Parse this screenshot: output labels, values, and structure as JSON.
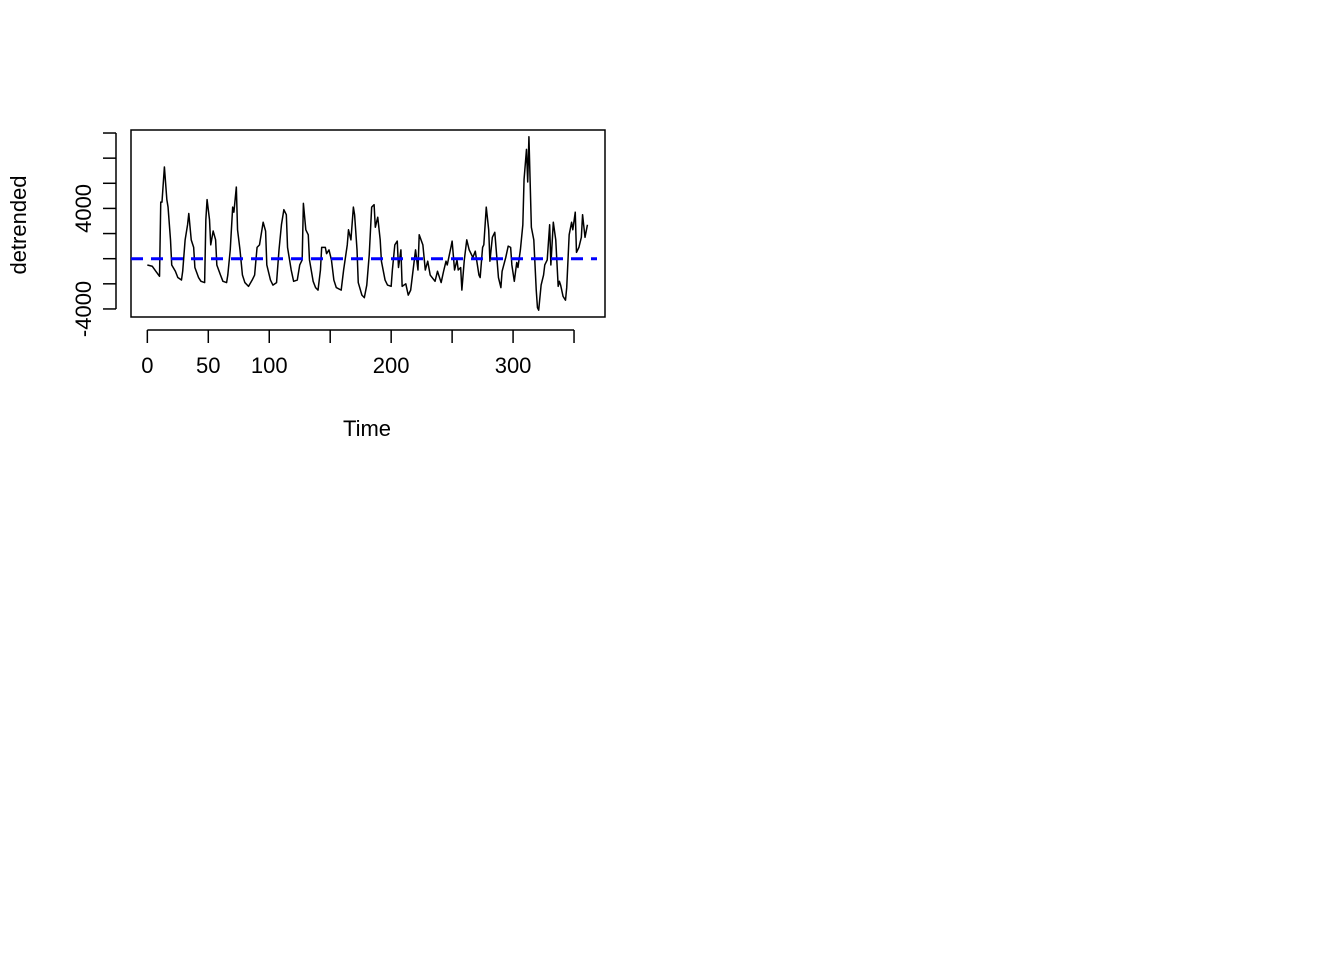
{
  "chart_data": {
    "type": "line",
    "xlabel": "Time",
    "ylabel": "detrended",
    "xlim": [
      -13.4,
      375.4
    ],
    "ylim": [
      -4640,
      10240
    ],
    "xticks": [
      0,
      50,
      100,
      {
        "value": 150,
        "label": null
      },
      200,
      {
        "value": 250,
        "label": null
      },
      300,
      {
        "value": 350,
        "label": null
      }
    ],
    "yticks": [
      -4000,
      {
        "value": -2000,
        "label": null
      },
      {
        "value": 0,
        "label": null
      },
      {
        "value": 2000,
        "label": null
      },
      4000,
      {
        "value": 6000,
        "label": null
      },
      {
        "value": 8000,
        "label": null
      },
      {
        "value": 10000,
        "label": null
      }
    ],
    "hline": {
      "value": 0,
      "color": "#0000ff"
    },
    "color": "#000000",
    "x": [
      0,
      4,
      7,
      10,
      11,
      12,
      14,
      16,
      17,
      19,
      20,
      23,
      25,
      28,
      29,
      31,
      33,
      34,
      36,
      38,
      39,
      42,
      44,
      47,
      48,
      49,
      51,
      52,
      54,
      56,
      57,
      60,
      62,
      65,
      66,
      68,
      70,
      71,
      73,
      74,
      76,
      78,
      80,
      83,
      86,
      88,
      90,
      92,
      95,
      97,
      98,
      101,
      103,
      106,
      108,
      110,
      112,
      114,
      115,
      118,
      120,
      123,
      125,
      127,
      128,
      130,
      132,
      133,
      136,
      138,
      140,
      142,
      143,
      146,
      147,
      149,
      151,
      153,
      155,
      159,
      161,
      164,
      165,
      167,
      169,
      170,
      172,
      173,
      176,
      178,
      180,
      182,
      184,
      186,
      187,
      189,
      191,
      192,
      195,
      197,
      200,
      201,
      203,
      205,
      206,
      208,
      209,
      212,
      214,
      216,
      218,
      220,
      222,
      223,
      226,
      228,
      230,
      232,
      236,
      238,
      241,
      243,
      245,
      246,
      249,
      250,
      252,
      254,
      255,
      257,
      258,
      260,
      262,
      264,
      267,
      269,
      272,
      273,
      275,
      276,
      278,
      280,
      281,
      283,
      285,
      286,
      288,
      290,
      291,
      294,
      296,
      298,
      299,
      301,
      303,
      304,
      306,
      308,
      309,
      311,
      312,
      313,
      315,
      317,
      319,
      320,
      321,
      323,
      325,
      326,
      328,
      330,
      331,
      333,
      335,
      337,
      338,
      339,
      341,
      343,
      344,
      346,
      348,
      349,
      351,
      352,
      354,
      356,
      357,
      359,
      361
    ],
    "values": [
      -500,
      -600,
      -1000,
      -1400,
      4500,
      4500,
      7300,
      4700,
      4100,
      1500,
      -500,
      -1000,
      -1500,
      -1700,
      -1000,
      1500,
      2700,
      3600,
      1500,
      900,
      -700,
      -1500,
      -1800,
      -1900,
      3100,
      4700,
      3100,
      1100,
      2200,
      1500,
      -500,
      -1300,
      -1800,
      -1900,
      -1300,
      700,
      4100,
      3700,
      5700,
      2300,
      700,
      -1300,
      -1900,
      -2200,
      -1700,
      -1300,
      900,
      1100,
      2900,
      2200,
      -500,
      -1700,
      -2100,
      -1900,
      700,
      2700,
      3900,
      3500,
      900,
      -900,
      -1800,
      -1700,
      -500,
      -100,
      4400,
      2300,
      1900,
      -100,
      -1800,
      -2300,
      -2500,
      -900,
      900,
      900,
      400,
      700,
      -100,
      -1700,
      -2300,
      -2500,
      -900,
      1100,
      2300,
      1500,
      4100,
      3500,
      700,
      -1900,
      -2900,
      -3100,
      -2100,
      300,
      4100,
      4300,
      2500,
      3300,
      1500,
      -200,
      -1700,
      -2100,
      -2200,
      -900,
      1100,
      1400,
      -700,
      700,
      -2200,
      -2000,
      -2900,
      -2500,
      -900,
      700,
      -900,
      1900,
      1100,
      -900,
      -200,
      -1300,
      -1800,
      -1000,
      -1900,
      -1000,
      -200,
      -500,
      900,
      1400,
      -900,
      -100,
      -900,
      -700,
      -2500,
      -100,
      1500,
      700,
      100,
      600,
      -1300,
      -1500,
      900,
      1100,
      4100,
      2300,
      -200,
      1700,
      2100,
      900,
      -1500,
      -2300,
      -1000,
      100,
      1000,
      900,
      -500,
      -1800,
      -300,
      -700,
      700,
      2700,
      6300,
      8700,
      6100,
      9700,
      2500,
      1500,
      -2500,
      -3900,
      -4100,
      -2100,
      -1300,
      -500,
      -100,
      2700,
      -500,
      2900,
      1500,
      -2200,
      -1800,
      -2100,
      -3000,
      -3300,
      -2300,
      1900,
      2900,
      2300,
      3700,
      500,
      900,
      1700,
      3500,
      1700,
      2700
    ]
  }
}
